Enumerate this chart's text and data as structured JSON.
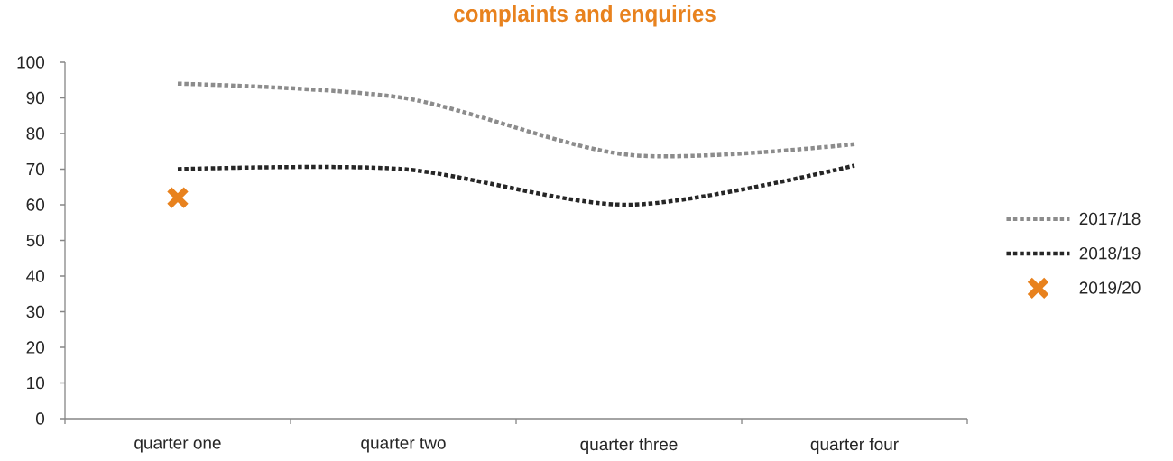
{
  "chart_data": {
    "type": "line",
    "title": "complaints and enquiries",
    "categories": [
      "quarter one",
      "quarter two",
      "quarter three",
      "quarter four"
    ],
    "series": [
      {
        "name": "2017/18",
        "color": "#8c8c8c",
        "values": [
          94,
          90,
          74,
          77
        ]
      },
      {
        "name": "2018/19",
        "color": "#262626",
        "values": [
          70,
          70,
          60,
          71
        ]
      },
      {
        "name": "2019/20",
        "type": "scatter",
        "marker": "cross",
        "color": "#e8821e",
        "values": [
          62,
          null,
          null,
          null
        ]
      }
    ],
    "line_style": "dotted",
    "ylim": [
      0,
      100
    ],
    "yticks": [
      0,
      10,
      20,
      30,
      40,
      50,
      60,
      70,
      80,
      90,
      100
    ],
    "legend": "right"
  }
}
